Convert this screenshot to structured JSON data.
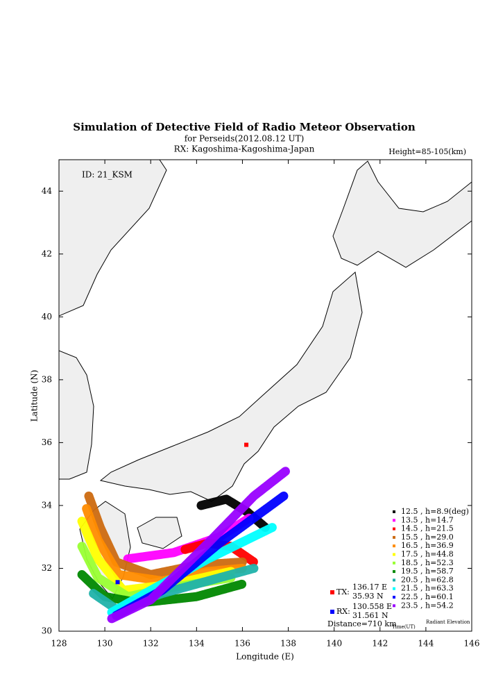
{
  "chart_data": {
    "type": "scatter",
    "title": "Simulation of Detective Field of Radio Meteor Observation",
    "subtitle": "for Perseids(2012.08.12 UT)",
    "receiver": "RX: Kagoshima-Kagoshima-Japan",
    "height_note": "Height=85-105(km)",
    "id_label": "ID: 21_KSM",
    "x_label": "Longitude (E)",
    "y_label": "Latitude (N)",
    "xlim": [
      128,
      146
    ],
    "xticks": [
      128,
      130,
      132,
      134,
      136,
      138,
      140,
      142,
      144,
      146
    ],
    "ylim": [
      30,
      45
    ],
    "yticks": [
      30,
      32,
      34,
      36,
      38,
      40,
      42,
      44
    ],
    "legend_time_label": "Time(UT)",
    "legend_elev_label": "Radiant Elevation",
    "stations": [
      {
        "label": "TX:",
        "lon_text": "136.17 E",
        "lat_text": "35.93 N",
        "x": 136.17,
        "y": 35.93,
        "color": "#ff0000"
      },
      {
        "label": "RX:",
        "lon_text": "130.558 E",
        "lat_text": "31.561 N",
        "x": 130.558,
        "y": 31.561,
        "color": "#0000ff"
      }
    ],
    "distance": "Distance=710 km",
    "series": [
      {
        "name": "12.5 ,  h=8.9(deg)",
        "color": "#000000",
        "x": [
          134.2,
          135.3,
          136.2,
          137.0
        ],
        "values": [
          34.0,
          34.2,
          33.8,
          33.3
        ]
      },
      {
        "name": "13.5 ,  h=14.7",
        "color": "#ff00ff",
        "x": [
          131.0,
          133.0,
          135.0,
          136.3
        ],
        "values": [
          32.3,
          32.5,
          33.0,
          33.6
        ]
      },
      {
        "name": "14.5 ,  h=21.5",
        "color": "#ff0000",
        "x": [
          133.5,
          134.5,
          135.5,
          136.5
        ],
        "values": [
          32.6,
          32.8,
          32.7,
          32.2
        ]
      },
      {
        "name": "15.5 ,  h=29.0",
        "color": "#cc6a10",
        "x": [
          129.3,
          129.8,
          130.5,
          132.0,
          134.0,
          136.0
        ],
        "values": [
          34.3,
          33.3,
          32.2,
          31.8,
          32.1,
          32.2
        ]
      },
      {
        "name": "16.5 ,  h=36.9",
        "color": "#ff8c00",
        "x": [
          129.2,
          129.7,
          130.6,
          132.5,
          134.5,
          136.0
        ],
        "values": [
          33.9,
          32.9,
          31.8,
          31.6,
          31.9,
          32.0
        ]
      },
      {
        "name": "17.5 ,  h=44.8",
        "color": "#ffff00",
        "x": [
          129.0,
          129.7,
          130.8,
          133.0,
          135.5
        ],
        "values": [
          33.5,
          32.3,
          31.3,
          31.5,
          31.9
        ]
      },
      {
        "name": "18.5 ,  h=52.3",
        "color": "#99ff33",
        "x": [
          129.0,
          129.7,
          131.0,
          133.0,
          135.5
        ],
        "values": [
          32.7,
          31.7,
          31.1,
          31.4,
          31.7
        ]
      },
      {
        "name": "19.5 ,  h=58.7",
        "color": "#008800",
        "x": [
          129.0,
          130.0,
          131.5,
          134.0,
          136.0
        ],
        "values": [
          31.8,
          31.1,
          30.9,
          31.1,
          31.5
        ]
      },
      {
        "name": "20.5 ,  h=62.8",
        "color": "#20b2aa",
        "x": [
          129.5,
          130.5,
          132.5,
          135.0,
          136.5
        ],
        "values": [
          31.2,
          30.7,
          31.2,
          31.7,
          32.0
        ]
      },
      {
        "name": "21.5 ,  h=63.3",
        "color": "#00ffff",
        "x": [
          130.3,
          132.0,
          134.5,
          137.3
        ],
        "values": [
          30.6,
          31.3,
          32.3,
          33.3
        ]
      },
      {
        "name": "22.5 ,  h=60.1",
        "color": "#0000ff",
        "x": [
          130.5,
          132.5,
          135.0,
          137.8
        ],
        "values": [
          30.5,
          31.3,
          32.8,
          34.3
        ]
      },
      {
        "name": "23.5 ,  h=54.2",
        "color": "#9900ff",
        "x": [
          130.3,
          132.0,
          134.5,
          136.5,
          137.9
        ],
        "values": [
          30.4,
          31.0,
          32.8,
          34.3,
          35.1
        ]
      }
    ]
  }
}
